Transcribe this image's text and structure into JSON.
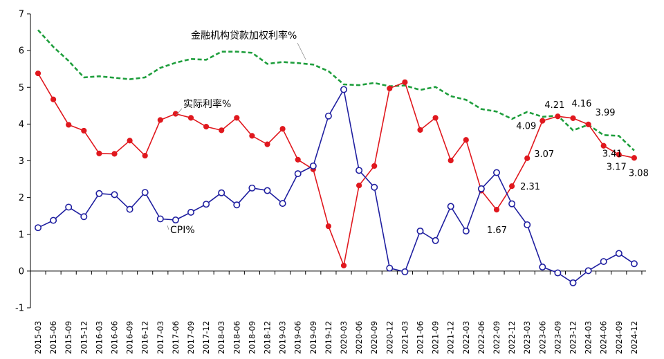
{
  "chart_data": {
    "type": "line",
    "ylim": [
      -1,
      7
    ],
    "yticks": [
      -1,
      0,
      1,
      2,
      3,
      4,
      5,
      6,
      7
    ],
    "grid": false,
    "categories": [
      "2015-03",
      "2015-06",
      "2015-09",
      "2015-12",
      "2016-03",
      "2016-06",
      "2016-09",
      "2016-12",
      "2017-03",
      "2017-06",
      "2017-09",
      "2017-12",
      "2018-03",
      "2018-06",
      "2018-09",
      "2018-12",
      "2019-03",
      "2019-06",
      "2019-09",
      "2019-12",
      "2020-03",
      "2020-06",
      "2020-09",
      "2020-12",
      "2021-03",
      "2021-06",
      "2021-09",
      "2021-12",
      "2022-03",
      "2022-06",
      "2022-09",
      "2022-12",
      "2023-03",
      "2023-06",
      "2023-09",
      "2023-12",
      "2024-03",
      "2024-06",
      "2024-09",
      "2024-12"
    ],
    "series": [
      {
        "name": "金融机构贷款加权利率%",
        "color": "#1e9e3c",
        "style": "dashed",
        "values": [
          6.56,
          6.1,
          5.72,
          5.27,
          5.3,
          5.26,
          5.22,
          5.27,
          5.53,
          5.67,
          5.77,
          5.75,
          5.97,
          5.97,
          5.94,
          5.64,
          5.69,
          5.66,
          5.62,
          5.44,
          5.08,
          5.06,
          5.12,
          5.03,
          5.05,
          4.93,
          5.01,
          4.76,
          4.66,
          4.41,
          4.34,
          4.14,
          4.33,
          4.2,
          4.23,
          3.83,
          3.98,
          3.7,
          3.68,
          3.28
        ]
      },
      {
        "name": "实际利率%",
        "color": "#e0181e",
        "style": "solid-filled-markers",
        "values": [
          5.38,
          4.67,
          3.98,
          3.82,
          3.2,
          3.19,
          3.55,
          3.14,
          4.11,
          4.28,
          4.17,
          3.93,
          3.83,
          4.17,
          3.68,
          3.45,
          3.87,
          3.03,
          2.77,
          1.22,
          0.15,
          2.33,
          2.86,
          4.97,
          5.14,
          3.84,
          4.17,
          3.01,
          3.57,
          2.19,
          1.67,
          2.31,
          3.07,
          4.09,
          4.21,
          4.16,
          3.99,
          3.41,
          3.17,
          3.08
        ]
      },
      {
        "name": "CPI%",
        "color": "#1f1fa0",
        "style": "solid-hollow-markers",
        "values": [
          1.18,
          1.38,
          1.74,
          1.48,
          2.11,
          2.08,
          1.68,
          2.14,
          1.42,
          1.39,
          1.6,
          1.82,
          2.13,
          1.8,
          2.26,
          2.19,
          1.84,
          2.65,
          2.86,
          4.22,
          4.94,
          2.74,
          2.28,
          0.08,
          -0.02,
          1.09,
          0.83,
          1.76,
          1.09,
          2.24,
          2.68,
          1.83,
          1.26,
          0.11,
          -0.05,
          -0.32,
          0.01,
          0.26,
          0.48,
          0.2
        ]
      }
    ],
    "data_labels": [
      {
        "series": 1,
        "index": 30,
        "text": "1.67"
      },
      {
        "series": 1,
        "index": 31,
        "text": "2.31"
      },
      {
        "series": 1,
        "index": 32,
        "text": "3.07"
      },
      {
        "series": 1,
        "index": 33,
        "text": "4.09"
      },
      {
        "series": 1,
        "index": 34,
        "text": "4.21"
      },
      {
        "series": 1,
        "index": 35,
        "text": "4.16"
      },
      {
        "series": 1,
        "index": 36,
        "text": "3.99"
      },
      {
        "series": 1,
        "index": 37,
        "text": "3.41"
      },
      {
        "series": 1,
        "index": 38,
        "text": "3.17"
      },
      {
        "series": 1,
        "index": 39,
        "text": "3.08"
      }
    ],
    "series_labels": [
      {
        "series": 0,
        "text": "金融机构贷款加权利率%"
      },
      {
        "series": 1,
        "text": "实际利率%"
      },
      {
        "series": 2,
        "text": "CPI%"
      }
    ]
  }
}
